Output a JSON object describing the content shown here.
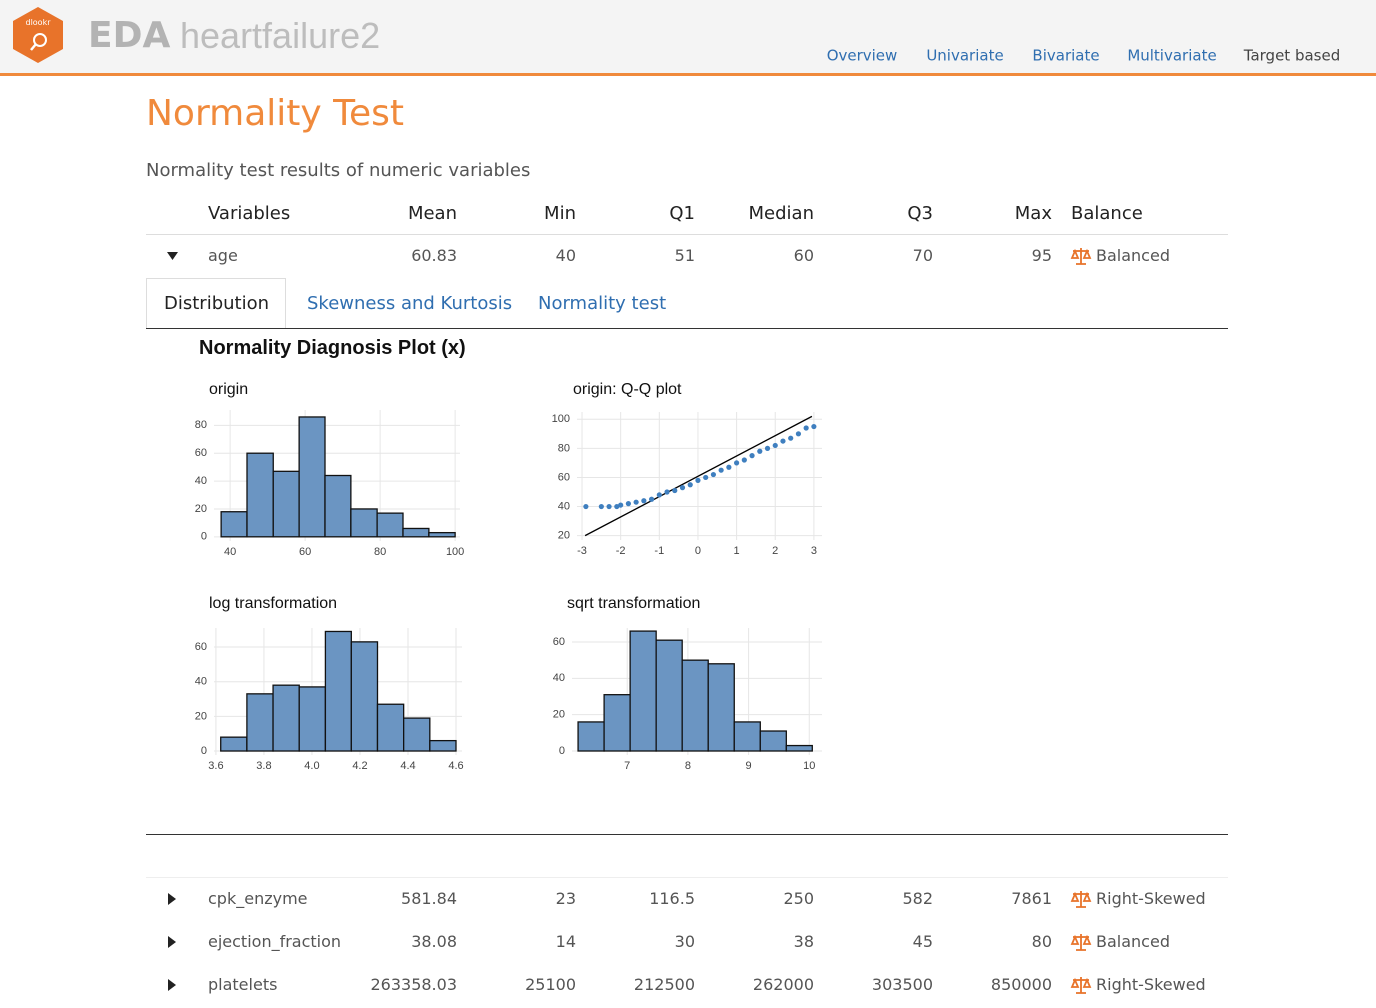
{
  "header": {
    "logo": "dlookr",
    "title": "EDA",
    "dataset": "heartfailure2",
    "nav": [
      "Overview",
      "Univariate",
      "Bivariate",
      "Multivariate",
      "Target based"
    ]
  },
  "heading": "Normality Test",
  "subtitle": "Normality test results of numeric variables",
  "table": {
    "columns": [
      "Variables",
      "Mean",
      "Min",
      "Q1",
      "Median",
      "Q3",
      "Max",
      "Balance"
    ],
    "rows": [
      [
        "age",
        60.83,
        40,
        51,
        60,
        70,
        95,
        "Balanced"
      ],
      [
        "cpk_enzyme",
        581.84,
        23,
        116.5,
        250,
        582,
        7861,
        "Right-Skewed"
      ],
      [
        "ejection_fraction",
        38.08,
        14,
        30,
        38,
        45,
        80,
        "Balanced"
      ],
      [
        "platelets",
        263358.03,
        25100,
        212500,
        262000,
        303500,
        850000,
        "Right-Skewed"
      ]
    ]
  },
  "tabs": [
    "Distribution",
    "Skewness and Kurtosis",
    "Normality test"
  ],
  "plot_title": "Normality Diagnosis Plot (x)",
  "chart_data": [
    {
      "type": "histogram",
      "title": "origin",
      "color": "#6b95c2",
      "grid": true,
      "bins": [
        37.6,
        44.5,
        51.5,
        58.4,
        65.3,
        72.2,
        79.2,
        86.1,
        93.0,
        100
      ],
      "values": [
        18,
        60,
        47,
        86,
        44,
        20,
        17,
        6,
        3
      ],
      "xlim": [
        35.7,
        101.3
      ],
      "ylim": [
        -3,
        91
      ],
      "xticks": [
        40,
        60,
        80,
        100
      ],
      "yticks": [
        0,
        20,
        40,
        60,
        80
      ]
    },
    {
      "type": "scatter",
      "title": "origin: Q-Q plot",
      "color": "#3f7fbf",
      "grid": true,
      "x": [
        -2.9,
        -2.5,
        -2.3,
        -2.1,
        -2.0,
        -1.8,
        -1.6,
        -1.4,
        -1.2,
        -1.0,
        -0.8,
        -0.6,
        -0.4,
        -0.2,
        0,
        0.2,
        0.4,
        0.6,
        0.8,
        1.0,
        1.2,
        1.4,
        1.6,
        1.8,
        2.0,
        2.2,
        2.4,
        2.6,
        2.8,
        3.0
      ],
      "values": [
        40,
        40,
        40,
        40,
        41,
        42,
        43,
        44,
        45,
        48,
        50,
        51,
        53,
        55,
        58,
        60,
        62,
        65,
        67,
        70,
        72,
        75,
        78,
        80,
        82,
        85,
        87,
        90,
        94,
        95
      ],
      "line": {
        "color": "#000000",
        "x": [
          -2.92,
          2.95
        ],
        "values": [
          20,
          102
        ]
      },
      "xlim": [
        -3.13,
        3.21
      ],
      "ylim": [
        17,
        105
      ],
      "xticks": [
        -3,
        -2,
        -1,
        0,
        1,
        2,
        3
      ],
      "yticks": [
        20,
        40,
        60,
        80,
        100
      ]
    },
    {
      "type": "histogram",
      "title": "log transformation",
      "color": "#6b95c2",
      "grid": true,
      "bins": [
        3.62,
        3.729,
        3.838,
        3.947,
        4.056,
        4.164,
        4.273,
        4.382,
        4.491,
        4.6
      ],
      "values": [
        8,
        33,
        38,
        37,
        69,
        63,
        27,
        19,
        6
      ],
      "xlim": [
        3.592,
        4.625
      ],
      "ylim": [
        -2.3,
        71
      ],
      "xticks": [
        3.6,
        3.8,
        {
          "value": 4,
          "label": "4.0"
        },
        4.2,
        4.4,
        4.6
      ],
      "yticks": [
        0,
        20,
        40,
        60
      ]
    },
    {
      "type": "histogram",
      "title": "sqrt transformation",
      "color": "#6b95c2",
      "grid": true,
      "bins": [
        6.19,
        6.619,
        7.048,
        7.477,
        7.906,
        8.335,
        8.764,
        9.193,
        9.622,
        10.05
      ],
      "values": [
        16,
        31,
        66,
        61,
        50,
        48,
        16,
        11,
        3
      ],
      "xlim": [
        6.09,
        10.21
      ],
      "ylim": [
        -2.2,
        67.7
      ],
      "xticks": [
        7,
        8,
        9,
        10
      ],
      "yticks": [
        0,
        20,
        40,
        60
      ]
    }
  ]
}
